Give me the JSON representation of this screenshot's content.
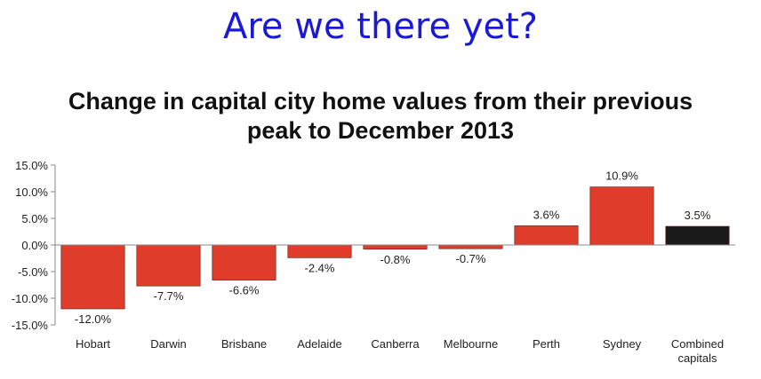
{
  "headline": "Are we there yet?",
  "colors": {
    "headline": "#1a1ad6",
    "bar": "#e03c2b",
    "bar_highlight": "#1a1a1a",
    "grid": "#d9d9d9",
    "axis": "#888888"
  },
  "chart_data": {
    "type": "bar",
    "title_lines": [
      "Change in capital city home values from their previous",
      "peak to December 2013"
    ],
    "xlabel": "",
    "ylabel": "",
    "categories": [
      "Hobart",
      "Darwin",
      "Brisbane",
      "Adelaide",
      "Canberra",
      "Melbourne",
      "Perth",
      "Sydney",
      "Combined capitals"
    ],
    "values": [
      -12.0,
      -7.7,
      -6.6,
      -2.4,
      -0.8,
      -0.7,
      3.6,
      10.9,
      3.5
    ],
    "data_labels": [
      "-12.0%",
      "-7.7%",
      "-6.6%",
      "-2.4%",
      "-0.8%",
      "-0.7%",
      "3.6%",
      "10.9%",
      "3.5%"
    ],
    "highlight_index": 8,
    "ylim": [
      -15,
      15
    ],
    "yticks": [
      15,
      10,
      5,
      0,
      -5,
      -10,
      -15
    ],
    "ytick_labels": [
      "15.0%",
      "10.0%",
      "5.0%",
      "0.0%",
      "-5.0%",
      "-10.0%",
      "-15.0%"
    ],
    "grid": true,
    "legend": "none"
  }
}
